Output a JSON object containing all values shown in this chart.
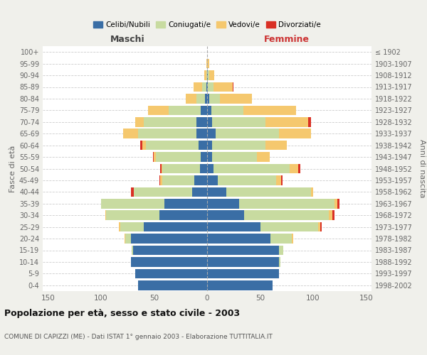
{
  "age_groups": [
    "0-4",
    "5-9",
    "10-14",
    "15-19",
    "20-24",
    "25-29",
    "30-34",
    "35-39",
    "40-44",
    "45-49",
    "50-54",
    "55-59",
    "60-64",
    "65-69",
    "70-74",
    "75-79",
    "80-84",
    "85-89",
    "90-94",
    "95-99",
    "100+"
  ],
  "birth_years": [
    "1998-2002",
    "1993-1997",
    "1988-1992",
    "1983-1987",
    "1978-1982",
    "1973-1977",
    "1968-1972",
    "1963-1967",
    "1958-1962",
    "1953-1957",
    "1948-1952",
    "1943-1947",
    "1938-1942",
    "1933-1937",
    "1928-1932",
    "1923-1927",
    "1918-1922",
    "1913-1917",
    "1908-1912",
    "1903-1907",
    "≤ 1902"
  ],
  "colors": {
    "celibe": "#3a6ea5",
    "coniugato": "#c8dba0",
    "vedovo": "#f5c86e",
    "divorziato": "#d93025"
  },
  "maschi": {
    "celibe": [
      65,
      68,
      72,
      70,
      72,
      60,
      45,
      40,
      14,
      12,
      7,
      6,
      8,
      10,
      10,
      6,
      2,
      1,
      0,
      0,
      0
    ],
    "coniugato": [
      0,
      0,
      0,
      1,
      5,
      22,
      50,
      60,
      55,
      30,
      35,
      42,
      50,
      55,
      50,
      30,
      8,
      4,
      1,
      0,
      0
    ],
    "vedovo": [
      0,
      0,
      0,
      0,
      1,
      1,
      1,
      0,
      0,
      2,
      1,
      2,
      3,
      14,
      8,
      20,
      10,
      8,
      2,
      1,
      0
    ],
    "divorziato": [
      0,
      0,
      0,
      0,
      0,
      0,
      0,
      0,
      3,
      1,
      1,
      1,
      2,
      0,
      0,
      0,
      0,
      0,
      0,
      0,
      0
    ]
  },
  "femmine": {
    "nubile": [
      62,
      68,
      68,
      68,
      60,
      50,
      35,
      30,
      18,
      10,
      6,
      5,
      5,
      8,
      5,
      4,
      2,
      1,
      1,
      0,
      0
    ],
    "coniugata": [
      0,
      0,
      1,
      4,
      20,
      55,
      80,
      90,
      80,
      55,
      72,
      42,
      50,
      60,
      50,
      30,
      10,
      5,
      1,
      0,
      0
    ],
    "vedova": [
      0,
      0,
      0,
      0,
      1,
      2,
      3,
      3,
      2,
      5,
      8,
      12,
      20,
      30,
      40,
      50,
      30,
      18,
      5,
      2,
      0
    ],
    "divorziata": [
      0,
      0,
      0,
      0,
      0,
      1,
      2,
      2,
      0,
      1,
      2,
      0,
      0,
      0,
      3,
      0,
      0,
      1,
      0,
      0,
      0
    ]
  },
  "title": "Popolazione per età, sesso e stato civile - 2003",
  "subtitle": "COMUNE DI CAPIZZI (ME) - Dati ISTAT 1° gennaio 2003 - Elaborazione TUTTITALIA.IT",
  "xlabel_left": "Maschi",
  "xlabel_right": "Femmine",
  "ylabel_left": "Fasce di età",
  "ylabel_right": "Anni di nascita",
  "xlim": 155,
  "legend_labels": [
    "Celibi/Nubili",
    "Coniugati/e",
    "Vedovi/e",
    "Divorziati/e"
  ],
  "bg_color": "#f0f0eb",
  "plot_bg": "#ffffff",
  "grid_color": "#cccccc"
}
